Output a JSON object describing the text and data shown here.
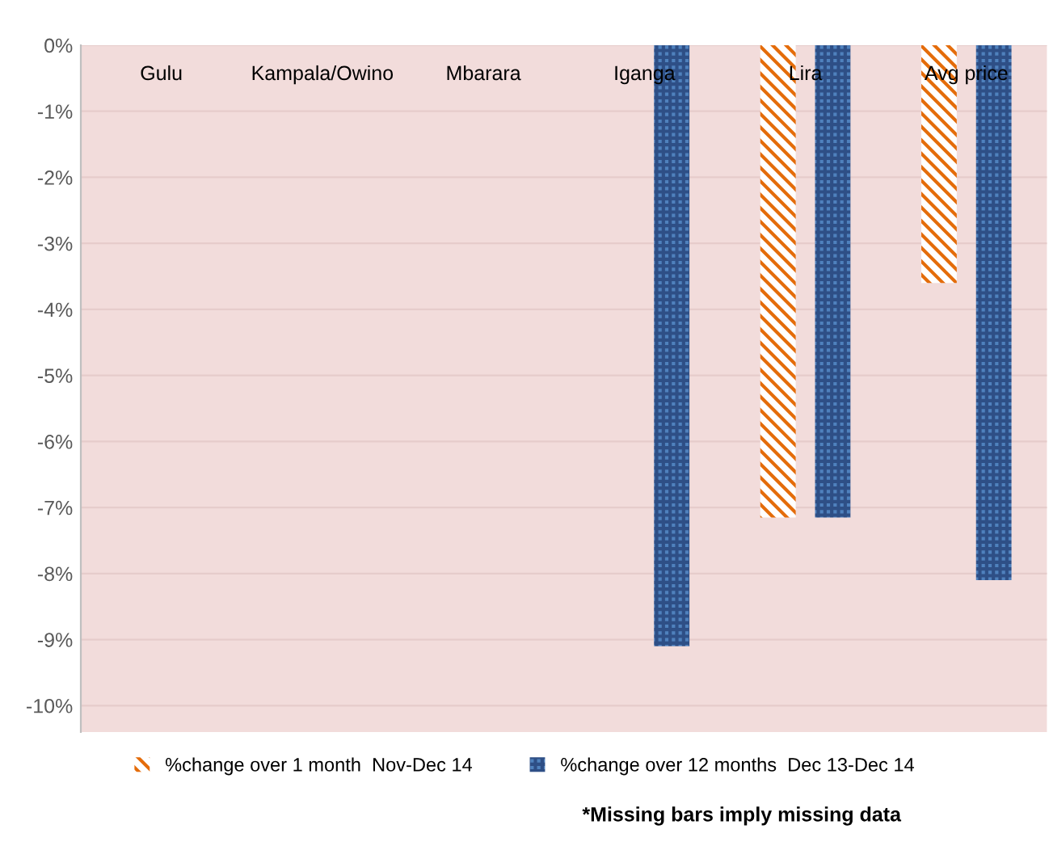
{
  "chart_data": {
    "type": "bar",
    "categories": [
      "Gulu",
      "Kampala/Owino",
      "Mbarara",
      "Iganga",
      "Lira",
      "Avg price"
    ],
    "series": [
      {
        "name": "%change over 1 month  Nov-Dec 14",
        "color": "#e46c0a",
        "values": [
          null,
          null,
          null,
          null,
          -7.15,
          -3.6
        ]
      },
      {
        "name": "%change over 12 months  Dec 13-Dec 14",
        "color": "#4f81bd",
        "values": [
          null,
          null,
          null,
          -9.1,
          -7.15,
          -8.1
        ]
      }
    ],
    "ylim": [
      -10.4,
      0
    ],
    "yticks": [
      {
        "value": 0,
        "label": "0%"
      },
      {
        "value": -1,
        "label": "-1%"
      },
      {
        "value": -2,
        "label": "-2%"
      },
      {
        "value": -3,
        "label": "-3%"
      },
      {
        "value": -4,
        "label": "-4%"
      },
      {
        "value": -5,
        "label": "-5%"
      },
      {
        "value": -6,
        "label": "-6%"
      },
      {
        "value": -7,
        "label": "-7%"
      },
      {
        "value": -8,
        "label": "-8%"
      },
      {
        "value": -9,
        "label": "-9%"
      },
      {
        "value": -10,
        "label": "-10%"
      }
    ],
    "grid": "y",
    "legend": "bottom",
    "annotations": [
      "*Missing bars imply missing data"
    ]
  }
}
